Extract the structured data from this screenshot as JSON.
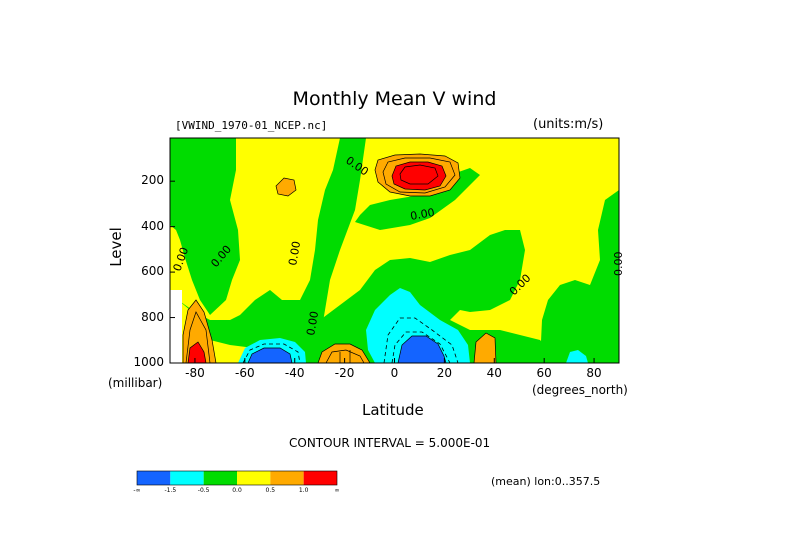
{
  "title": "Monthly Mean V wind",
  "dataset": "[VWIND_1970-01_NCEP.nc]",
  "units": "(units:m/s)",
  "contour_interval": "CONTOUR INTERVAL = 5.000E-01",
  "footer_note": "(mean) lon:0..357.5",
  "colors": {
    "level_neg2": "#1464ff",
    "level_neg1_5": "#00ffff",
    "level_neg0_5": "#00dc00",
    "level_0": "#ffff00",
    "level_0_5": "#ffaa00",
    "level_1_0": "#ff0000"
  },
  "colorbar": {
    "labels": [
      "-∞",
      "-1.5",
      "-0.5",
      "0.0",
      "0.5",
      "1.0",
      "∞"
    ],
    "swatches": [
      "#1464ff",
      "#00ffff",
      "#00dc00",
      "#ffff00",
      "#ffaa00",
      "#ff0000"
    ]
  },
  "chart_data": {
    "type": "heatmap",
    "subtype": "filled contour",
    "xlabel": "Latitude",
    "x_unit": "(degrees_north)",
    "ylabel": "Level",
    "y_unit": "(millibar)",
    "xlim": [
      -90,
      90
    ],
    "ylim": [
      1000,
      10
    ],
    "x_ticks": [
      "-80",
      "-60",
      "-40",
      "-20",
      "0",
      "20",
      "40",
      "60",
      "80"
    ],
    "y_ticks": [
      "200",
      "400",
      "600",
      "800",
      "1000"
    ],
    "contour_labels": [
      "0.00",
      "0.00",
      "0.00",
      "0.00",
      "0.00",
      "0.00",
      "0.00",
      "0.00"
    ],
    "features": [
      {
        "kind": "max",
        "lat": 10,
        "level": 170,
        "value": 1.5
      },
      {
        "kind": "min",
        "lat": 10,
        "level": 960,
        "value": -2.0
      },
      {
        "kind": "min",
        "lat": -50,
        "level": 980,
        "value": -2.0
      },
      {
        "kind": "max",
        "lat": -80,
        "level": 950,
        "value": 1.5
      }
    ]
  }
}
